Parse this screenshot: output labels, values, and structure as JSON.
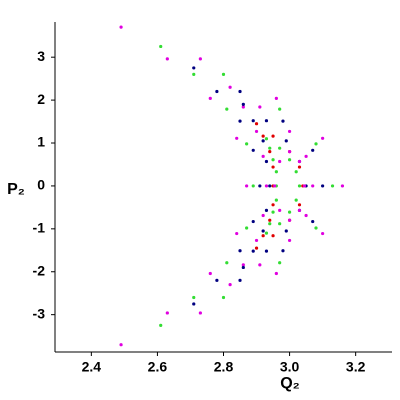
{
  "chart_data": {
    "type": "scatter",
    "xlabel": "Q₂",
    "ylabel": "P₂",
    "xlim": [
      2.29,
      3.31
    ],
    "ylim": [
      -3.87,
      3.82
    ],
    "xticks": [
      2.4,
      2.6,
      2.8,
      {
        "value": 3,
        "label": "3.0"
      },
      3.2
    ],
    "yticks": [
      -3,
      -2,
      -1,
      0,
      1,
      2,
      3
    ],
    "series": [
      {
        "color": "#e000e0",
        "x": [
          2.49,
          2.73,
          2.96,
          3.1,
          3.16,
          3.1,
          2.96,
          2.73,
          2.49,
          2.63,
          2.76,
          2.84,
          2.87,
          2.84,
          2.76,
          2.63
        ],
        "y": [
          3.7,
          2.96,
          2.04,
          1.11,
          0,
          -1.11,
          -2.04,
          -2.96,
          -3.7,
          2.96,
          2.04,
          1.11,
          0,
          -1.11,
          -2.04,
          -2.96
        ]
      },
      {
        "color": "#33dd33",
        "x": [
          2.61,
          2.8,
          2.97,
          3.08,
          3.13,
          3.08,
          2.97,
          2.8,
          2.61,
          2.71,
          2.81,
          2.87,
          2.89,
          2.87,
          2.81,
          2.71
        ],
        "y": [
          3.25,
          2.6,
          1.79,
          0.98,
          0,
          -0.98,
          -1.79,
          -2.6,
          -3.25,
          2.6,
          1.79,
          0.98,
          0,
          -0.98,
          -1.79,
          -2.6
        ]
      },
      {
        "color": "#000080",
        "x": [
          2.71,
          2.85,
          2.98,
          3.07,
          3.1,
          3.07,
          2.98,
          2.85,
          2.71,
          2.78,
          2.85,
          2.89,
          2.91,
          2.89,
          2.85,
          2.78
        ],
        "y": [
          2.75,
          2.2,
          1.51,
          0.83,
          0,
          -0.83,
          -1.51,
          -2.2,
          -2.75,
          2.2,
          1.51,
          0.83,
          0,
          -0.83,
          -1.51,
          -2.2
        ]
      },
      {
        "color": "#e000e0",
        "x": [
          2.82,
          2.91,
          3.0,
          3.05,
          3.07,
          3.05,
          3.0,
          2.91,
          2.82,
          2.86,
          2.9,
          2.92,
          2.93,
          2.92,
          2.9,
          2.86
        ],
        "y": [
          2.3,
          1.84,
          1.27,
          0.69,
          0,
          -0.69,
          -1.27,
          -1.84,
          -2.3,
          1.84,
          1.27,
          0.69,
          0,
          -0.69,
          -1.27,
          -1.84
        ]
      },
      {
        "color": "#000080",
        "x": [
          2.86,
          2.93,
          2.99,
          3.03,
          3.05,
          3.03,
          2.99,
          2.93,
          2.86,
          2.89,
          2.92,
          2.93,
          2.94,
          2.93,
          2.92,
          2.89
        ],
        "y": [
          1.9,
          1.52,
          1.05,
          0.57,
          0,
          -0.57,
          -1.05,
          -1.52,
          -1.9,
          1.52,
          1.05,
          0.57,
          0,
          -0.57,
          -1.05,
          -1.52
        ]
      },
      {
        "color": "#e00000",
        "x": [
          2.9,
          2.95,
          3.0,
          3.03,
          3.04,
          3.03,
          3.0,
          2.95,
          2.9,
          2.92,
          2.94,
          2.95,
          2.95,
          2.95,
          2.94,
          2.92
        ],
        "y": [
          1.45,
          1.16,
          0.8,
          0.44,
          0,
          -0.44,
          -0.8,
          -1.16,
          -1.45,
          1.16,
          0.8,
          0.44,
          0,
          -0.44,
          -0.8,
          -1.16
        ]
      },
      {
        "color": "#33dd33",
        "x": [
          2.93,
          2.97,
          3.0,
          3.02,
          3.03,
          3.02,
          3.0,
          2.97,
          2.93,
          2.94,
          2.95,
          2.96,
          2.96,
          2.96,
          2.95,
          2.94
        ],
        "y": [
          1.1,
          0.88,
          0.61,
          0.33,
          0,
          -0.33,
          -0.61,
          -0.88,
          -1.1,
          0.88,
          0.61,
          0.33,
          0,
          -0.33,
          -0.61,
          -0.88
        ]
      },
      {
        "color": "#e000e0",
        "x": [
          3.045,
          3.03,
          3.0,
          2.97,
          2.955,
          2.97,
          3.0,
          3.03
        ],
        "y": [
          0,
          0.57,
          0.8,
          0.57,
          0,
          -0.57,
          -0.8,
          -0.57
        ]
      }
    ]
  }
}
